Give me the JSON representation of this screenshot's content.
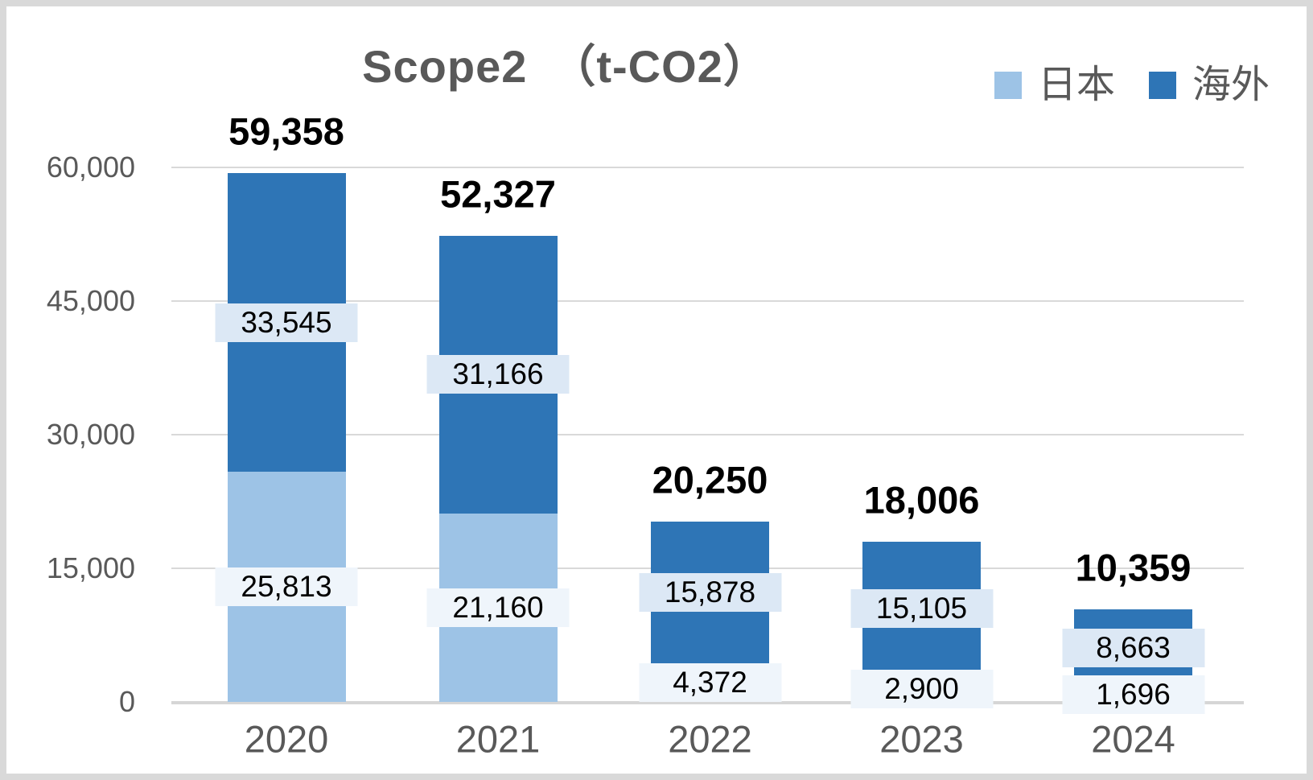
{
  "title": "Scope2　（t-CO2）",
  "legend": {
    "items": [
      {
        "label": "日本",
        "color": "#9DC3E6"
      },
      {
        "label": "海外",
        "color": "#2E75B6"
      }
    ]
  },
  "colors": {
    "japan_series": "#9DC3E6",
    "overseas_series": "#2E75B6",
    "japan_label_bg": "#EFF5FB",
    "overseas_label_bg": "#DCE8F5",
    "gridline": "#D9D9D9",
    "axis_line": "#D6D6D6",
    "axis_text": "#595959",
    "title_text": "#595959",
    "data_label_text": "#000000",
    "total_label_text": "#000000",
    "frame_border": "#D9D9D9"
  },
  "chart_data": {
    "type": "bar",
    "stacked": true,
    "title": "Scope2　（t-CO2）",
    "categories": [
      "2020",
      "2021",
      "2022",
      "2023",
      "2024"
    ],
    "series": [
      {
        "name": "日本",
        "color": "#9DC3E6",
        "label_bg": "#EFF5FB",
        "values": [
          25813,
          21160,
          4372,
          2900,
          1696
        ],
        "data_labels": [
          "25,813",
          "21,160",
          "4,372",
          "2,900",
          "1,696"
        ]
      },
      {
        "name": "海外",
        "color": "#2E75B6",
        "label_bg": "#DCE8F5",
        "values": [
          33545,
          31166,
          15878,
          15105,
          8663
        ],
        "data_labels": [
          "33,545",
          "31,166",
          "15,878",
          "15,105",
          "8,663"
        ]
      }
    ],
    "totals": [
      59358,
      52327,
      20250,
      18006,
      10359
    ],
    "total_labels": [
      "59,358",
      "52,327",
      "20,250",
      "18,006",
      "10,359"
    ],
    "xlabel": "",
    "ylabel": "",
    "ylim": [
      0,
      60000
    ],
    "y_ticks": [
      {
        "value": 0,
        "label": "0"
      },
      {
        "value": 15000,
        "label": "15,000"
      },
      {
        "value": 30000,
        "label": "30,000"
      },
      {
        "value": 45000,
        "label": "45,000"
      },
      {
        "value": 60000,
        "label": "60,000"
      }
    ],
    "grid": true,
    "legend_position": "top-right"
  }
}
